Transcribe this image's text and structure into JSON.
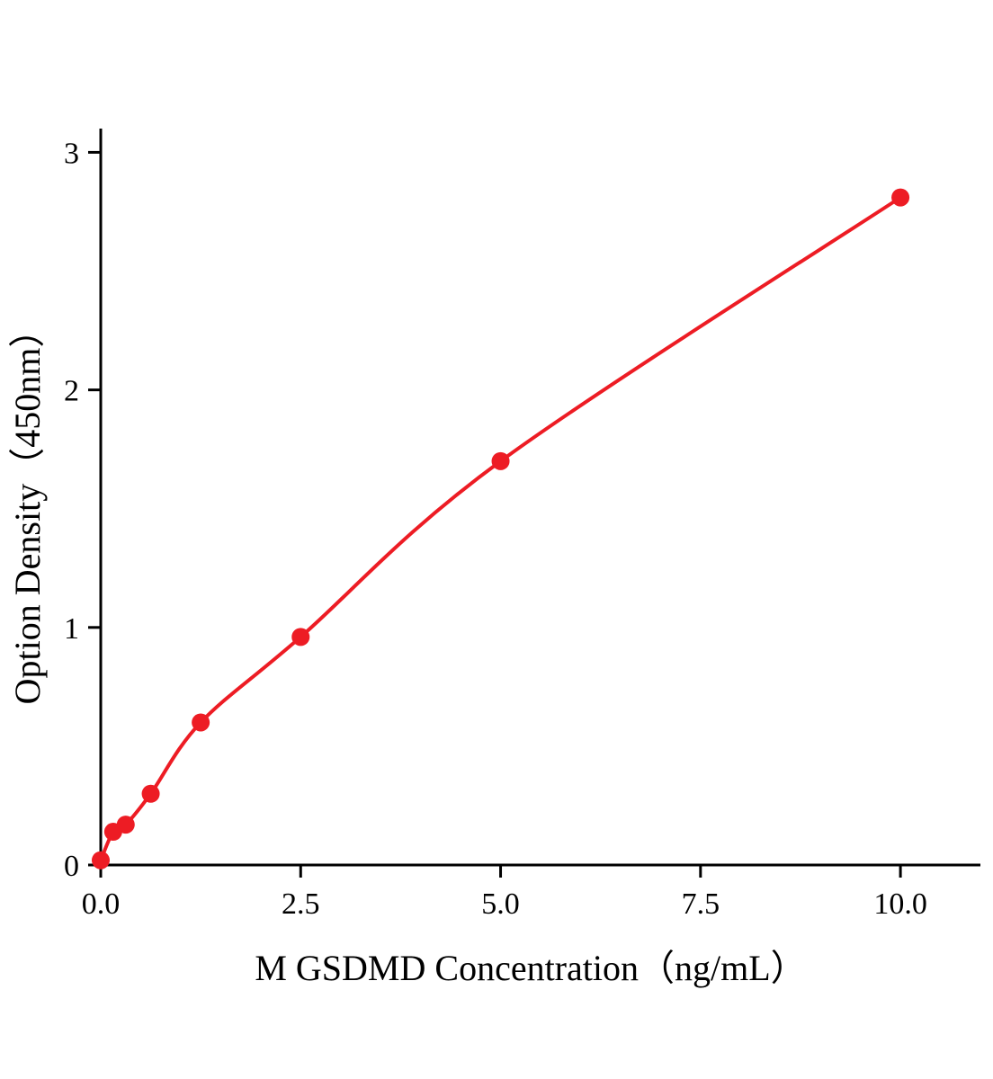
{
  "chart_data": {
    "type": "scatter",
    "subtype": "scatter-with-smooth-line",
    "title": "",
    "xlabel": "M GSDMD Concentration（ng/mL）",
    "ylabel": "Option Density（450nm）",
    "x": [
      0,
      0.156,
      0.3125,
      0.625,
      1.25,
      2.5,
      5,
      10
    ],
    "y": [
      0.02,
      0.14,
      0.17,
      0.3,
      0.6,
      0.96,
      1.7,
      2.81
    ],
    "xticks": [
      0,
      2.5,
      5,
      7.5,
      10
    ],
    "xtick_labels": [
      "0.0",
      "2.5",
      "5.0",
      "7.5",
      "10.0"
    ],
    "yticks": [
      0,
      1,
      2,
      3
    ],
    "ytick_labels": [
      "0",
      "1",
      "2",
      "3"
    ],
    "xlim": [
      0,
      11
    ],
    "ylim": [
      0,
      3.1
    ],
    "grid": false,
    "legend": null,
    "line_color": "#ed1c24",
    "marker_color": "#ed1c24",
    "axis_color": "#000000"
  }
}
